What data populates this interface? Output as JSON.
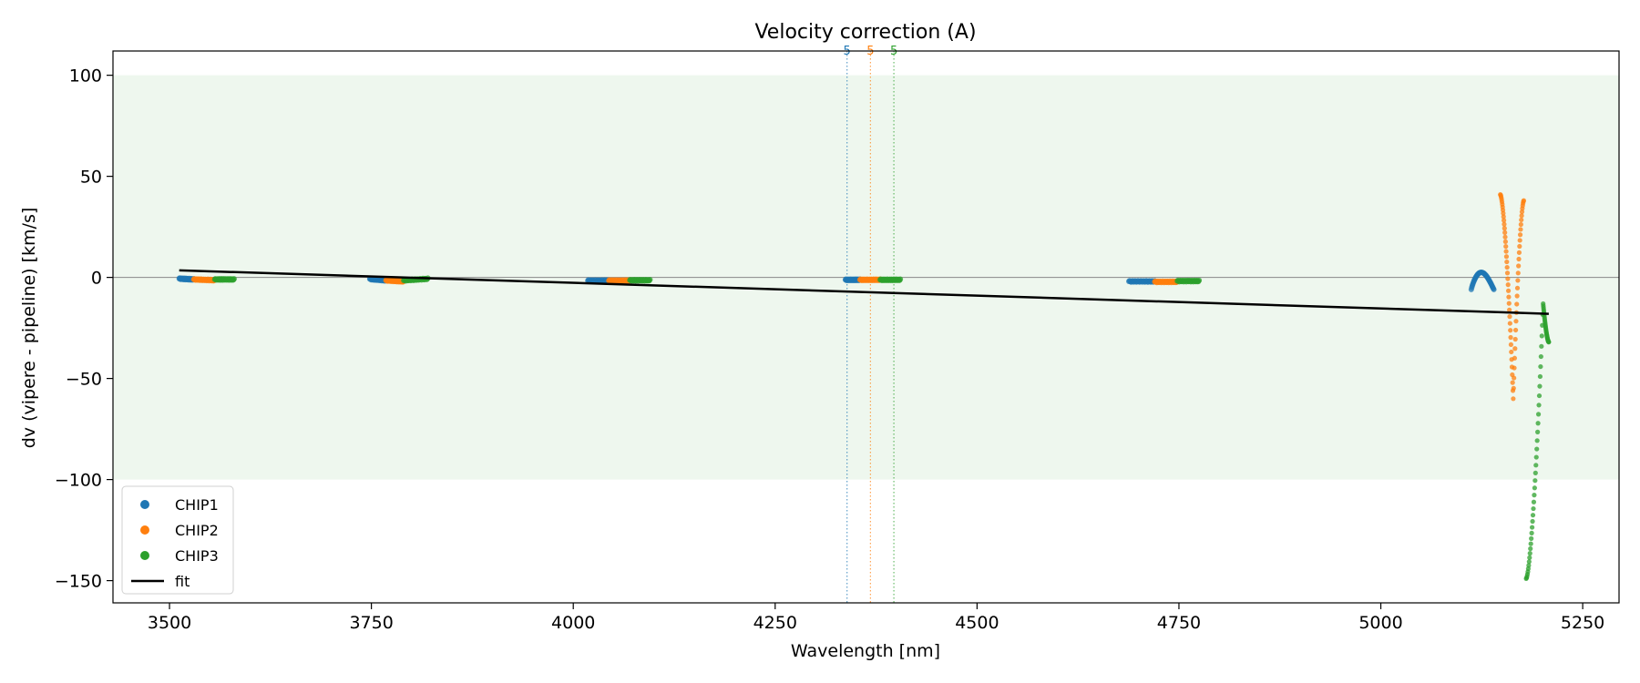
{
  "chart_data": {
    "type": "scatter",
    "title": "Velocity correction (A)",
    "xlabel": "Wavelength [nm]",
    "ylabel": "dv (vipere - pipeline) [km/s]",
    "xlim": [
      3430,
      5295
    ],
    "ylim": [
      -161,
      112
    ],
    "xticks": [
      3500,
      3750,
      4000,
      4250,
      4500,
      4750,
      5000,
      5250
    ],
    "yticks": [
      100,
      50,
      0,
      -50,
      -100,
      -150
    ],
    "band": [
      -100,
      100
    ],
    "zero_line": 0,
    "legend_position": "lower-left",
    "colors": {
      "CHIP1": "#1f77b4",
      "CHIP2": "#ff7f0e",
      "CHIP3": "#2ca02c",
      "fit": "#000000",
      "band": "#eef7ee"
    },
    "series": [
      {
        "name": "CHIP1",
        "clusters": [
          {
            "x": [
              3512,
              3530
            ],
            "y": [
              -0.6,
              -1.0
            ]
          },
          {
            "x": [
              3748,
              3768
            ],
            "y": [
              -0.8,
              -1.5
            ]
          },
          {
            "x": [
              4018,
              4044
            ],
            "y": [
              -1.6,
              -1.6
            ]
          },
          {
            "x": [
              4337,
              4355
            ],
            "y": [
              -1.2,
              -1.2
            ]
          },
          {
            "x": [
              4688,
              4720
            ],
            "y": [
              -2.0,
              -2.0
            ]
          }
        ],
        "arc": {
          "x_start": 5112,
          "x_end": 5140,
          "y_base": -6,
          "y_peak": 2.5
        }
      },
      {
        "name": "CHIP2",
        "clusters": [
          {
            "x": [
              3530,
              3556
            ],
            "y": [
              -1.0,
              -1.4
            ]
          },
          {
            "x": [
              3768,
              3790
            ],
            "y": [
              -1.5,
              -2.0
            ]
          },
          {
            "x": [
              4044,
              4070
            ],
            "y": [
              -1.6,
              -1.6
            ]
          },
          {
            "x": [
              4355,
              4380
            ],
            "y": [
              -1.2,
              -1.2
            ]
          },
          {
            "x": [
              4720,
              4748
            ],
            "y": [
              -2.2,
              -2.2
            ]
          }
        ],
        "dip": {
          "x_left": 5148,
          "x_min": 5164,
          "x_right": 5177,
          "y_left": 41,
          "y_min": -60,
          "y_right": 38
        }
      },
      {
        "name": "CHIP3",
        "clusters": [
          {
            "x": [
              3556,
              3580
            ],
            "y": [
              -1.0,
              -1.0
            ]
          },
          {
            "x": [
              3790,
              3820
            ],
            "y": [
              -1.5,
              -0.7
            ]
          },
          {
            "x": [
              4070,
              4095
            ],
            "y": [
              -1.4,
              -1.4
            ]
          },
          {
            "x": [
              4380,
              4405
            ],
            "y": [
              -1.2,
              -1.2
            ]
          },
          {
            "x": [
              4748,
              4775
            ],
            "y": [
              -1.8,
              -1.8
            ]
          }
        ],
        "dip": {
          "x_left": 5180,
          "x_min": 5201,
          "x_right": 5208,
          "y_left": -149,
          "y_min": -13,
          "y_right": -32
        }
      }
    ],
    "fit": {
      "x": [
        3512,
        5208
      ],
      "y": [
        3.5,
        -18
      ]
    },
    "vlines": [
      {
        "x": 4339,
        "label": "5",
        "series": "CHIP1"
      },
      {
        "x": 4368,
        "label": "5",
        "series": "CHIP2"
      },
      {
        "x": 4397,
        "label": "5",
        "series": "CHIP3"
      }
    ],
    "legend": [
      "CHIP1",
      "CHIP2",
      "CHIP3",
      "fit"
    ]
  }
}
